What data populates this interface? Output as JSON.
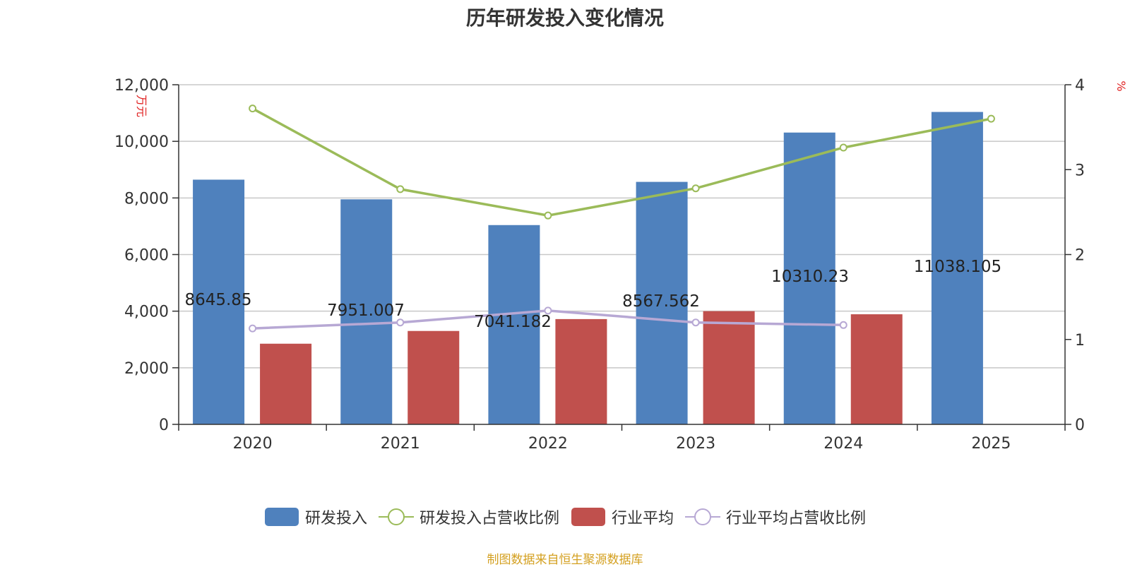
{
  "chart_data": {
    "type": "bar",
    "title": "历年研发投入变化情况",
    "categories": [
      "2020",
      "2021",
      "2022",
      "2023",
      "2024",
      "2025"
    ],
    "left_axis": {
      "unit": "万元",
      "ylim": [
        0,
        12000
      ],
      "ticks": [
        "0",
        "2,000",
        "4,000",
        "6,000",
        "8,000",
        "10,000",
        "12,000"
      ]
    },
    "right_axis": {
      "unit": "%",
      "ylim": [
        0,
        4
      ],
      "ticks": [
        "0",
        "1",
        "2",
        "3",
        "4"
      ]
    },
    "series": [
      {
        "name": "研发投入",
        "kind": "bar",
        "axis": "left",
        "color": "#4f81bd",
        "values": [
          8645.85,
          7951.007,
          7041.182,
          8567.562,
          10310.23,
          11038.105
        ],
        "labels": [
          "8645.85",
          "7951.007",
          "7041.182",
          "8567.562",
          "10310.23",
          "11038.105"
        ]
      },
      {
        "name": "研发投入占营收比例",
        "kind": "line",
        "axis": "right",
        "color": "#9bbb59",
        "values": [
          3.72,
          2.77,
          2.46,
          2.78,
          3.26,
          3.6
        ]
      },
      {
        "name": "行业平均",
        "kind": "bar",
        "axis": "left",
        "color": "#c0504d",
        "values": [
          2850,
          3300,
          3720,
          4000,
          3890,
          null
        ]
      },
      {
        "name": "行业平均占营收比例",
        "kind": "line",
        "axis": "right",
        "color": "#b7a8d4",
        "values": [
          1.13,
          1.2,
          1.34,
          1.2,
          1.17,
          null
        ]
      }
    ],
    "grid": true,
    "legend_position": "bottom"
  },
  "source_note": "制图数据来自恒生聚源数据库"
}
